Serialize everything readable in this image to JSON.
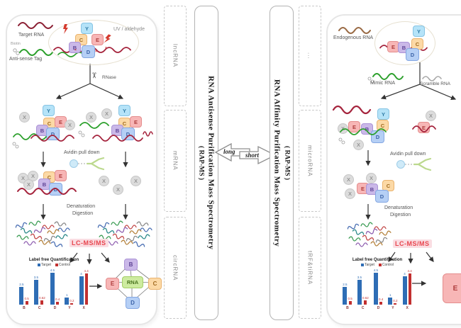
{
  "method_columns": {
    "left_types": [
      "lncRNA",
      "mRNA",
      "circRNA"
    ],
    "left_method_title": "RNA Antisense Purification Mass Spectrometry",
    "left_method_abbr": "( RAP-MS )",
    "compare_long": "long",
    "compare_short": "short",
    "right_method_title": "RNA Affinity Purification Mass Spectrometry",
    "right_method_abbr": "( RAP-MS )",
    "right_types": [
      "...",
      "microRNA",
      "tRF&tiRNA"
    ]
  },
  "left_panel": {
    "target_rna_label": "Target RNA",
    "biotin_label": "Biotin",
    "antisense_tag_label": "Anti-sense Tag",
    "uv_label": "UV / aldehyde",
    "rnase_label": "RNase",
    "avidin_label": "Avidin pull down",
    "denaturation_label": "Denaturation",
    "digestion_label": "Digestion",
    "lcms_label": "LC-MS/MS"
  },
  "right_panel": {
    "endogenous_rna_label": "Endogenous RNA",
    "mimic_rna_label": "Mimic RNA",
    "scramble_rna_label": "Scramble RNA",
    "avidin_label": "Avidin pull down",
    "denaturation_label": "Denaturation",
    "digestion_label": "Digestion",
    "lcms_label": "LC-MS/MS"
  },
  "proteins": {
    "B": "B",
    "C": "C",
    "D": "D",
    "E": "E",
    "X": "X",
    "Y": "Y"
  },
  "network": {
    "center": "RNA",
    "top": "B",
    "left": "E",
    "right": "C",
    "bottom": "D"
  },
  "icons": {
    "scissors": "✂"
  },
  "marks": {
    "crosslink": "×"
  },
  "colors": {
    "target_series": "#2e6db5",
    "control_series": "#c23030",
    "lcms_red": "#e8454e",
    "rna_red": "#962339",
    "mimic_green": "#2ca02c",
    "endogenous_brown": "#9a6b45"
  },
  "chart_data": {
    "type": "bar",
    "title": "Label free Quantification",
    "categories": [
      "B",
      "C",
      "D",
      "Y",
      "X"
    ],
    "series": [
      {
        "name": "Target",
        "color": "#2e6db5",
        "values": [
          2.5,
          3.5,
          4.5,
          1,
          4
        ]
      },
      {
        "name": "Control",
        "color": "#c23030",
        "values": [
          0.5,
          0.62,
          0.4,
          0.2,
          4.4
        ]
      }
    ],
    "ylim": [
      0,
      5
    ],
    "legend_position": "top",
    "grid": false,
    "note": "same chart shown in both left and right panels"
  }
}
